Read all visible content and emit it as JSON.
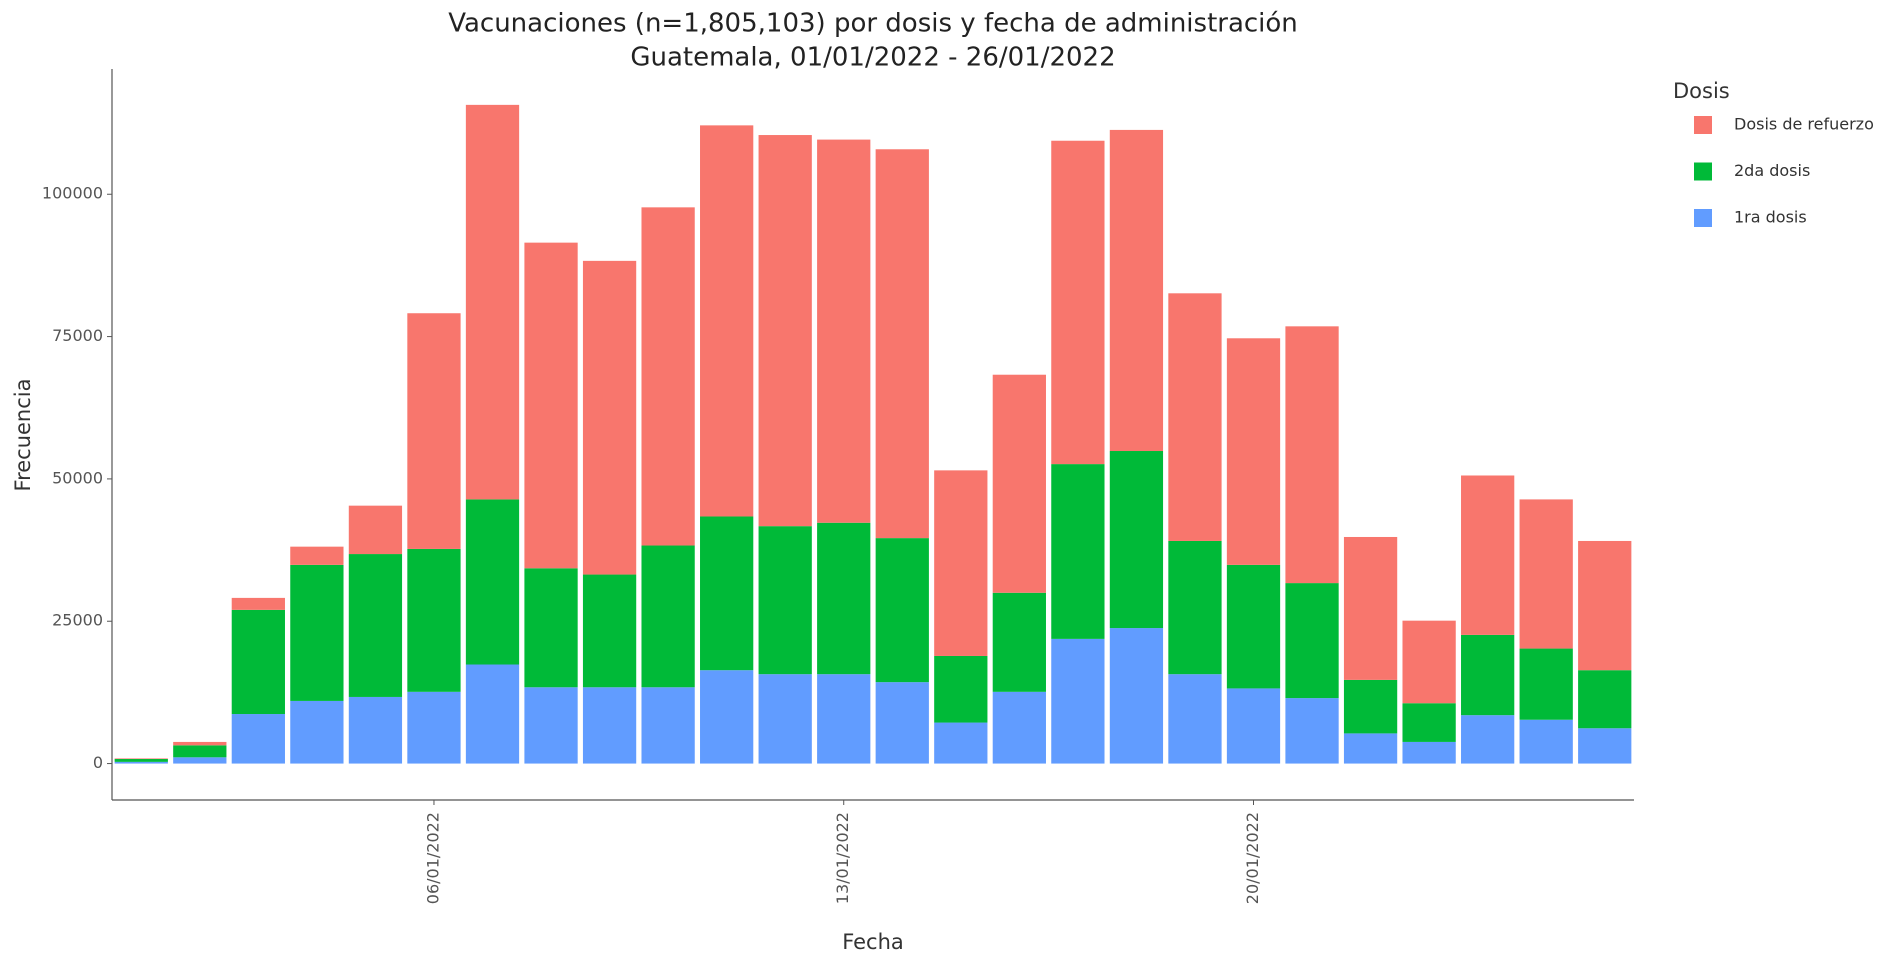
{
  "chart_data": {
    "type": "stacked_bar",
    "title": "Vacunaciones (n=1,805,103) por dosis y fecha de administración",
    "subtitle": "Guatemala, 01/01/2022 - 26/01/2022",
    "x_label": "Fecha",
    "y_label": "Frecuencia",
    "legend_title": "Dosis",
    "legend_position": "right",
    "grid": false,
    "categories": [
      null,
      null,
      null,
      null,
      null,
      "06/01/2022",
      null,
      null,
      null,
      null,
      null,
      null,
      "13/01/2022",
      null,
      null,
      null,
      null,
      null,
      null,
      "20/01/2022",
      null,
      null,
      null,
      null,
      null,
      null
    ],
    "ylim": [
      -6400,
      122000
    ],
    "yticks": [
      0,
      25000,
      50000,
      75000,
      100000
    ],
    "series": [
      {
        "name": "1ra dosis",
        "color": "#619CFF",
        "values": [
          300,
          1100,
          8700,
          11000,
          11700,
          12600,
          17400,
          13400,
          13400,
          13400,
          16400,
          15700,
          15700,
          14300,
          7200,
          12600,
          21900,
          23800,
          15700,
          13200,
          11500,
          5300,
          3800,
          8500,
          7700,
          6200
        ]
      },
      {
        "name": "2da dosis",
        "color": "#00BA38",
        "values": [
          500,
          2100,
          18300,
          23900,
          25100,
          25100,
          29000,
          20900,
          19800,
          24900,
          27000,
          26000,
          26600,
          25300,
          11700,
          17400,
          30700,
          31100,
          23400,
          21700,
          20200,
          9400,
          6800,
          14100,
          12500,
          10200
        ]
      },
      {
        "name": "Dosis de refuerzo",
        "color": "#F8766D",
        "values": [
          100,
          600,
          2100,
          3200,
          8500,
          41400,
          69300,
          57200,
          55100,
          59400,
          68700,
          68700,
          67300,
          68300,
          32600,
          38300,
          56800,
          56400,
          43500,
          39800,
          45100,
          25100,
          14500,
          28000,
          26200,
          22700
        ]
      }
    ]
  }
}
